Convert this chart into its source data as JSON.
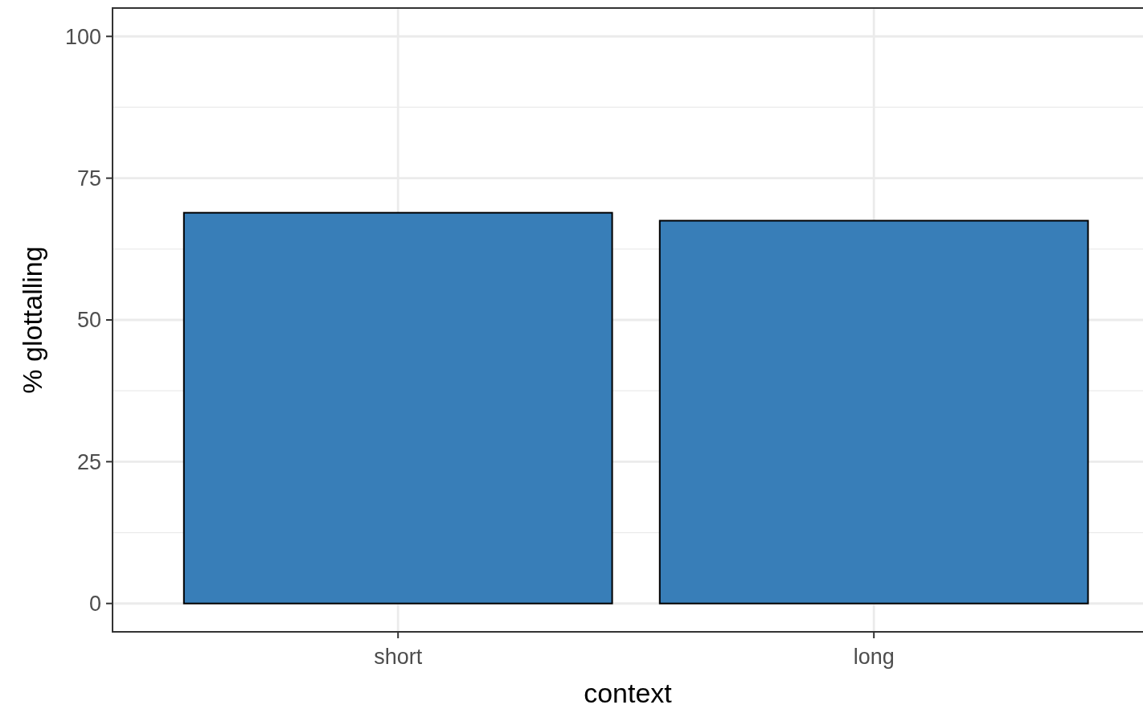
{
  "chart_data": {
    "type": "bar",
    "xlabel": "context",
    "ylabel": "% glottalling",
    "categories": [
      "short",
      "long"
    ],
    "values": [
      68.9,
      67.5
    ],
    "color": "#387eb8",
    "ylim": [
      -5,
      105
    ],
    "yticks": [
      0,
      25,
      50,
      75,
      100
    ],
    "grid": true
  }
}
